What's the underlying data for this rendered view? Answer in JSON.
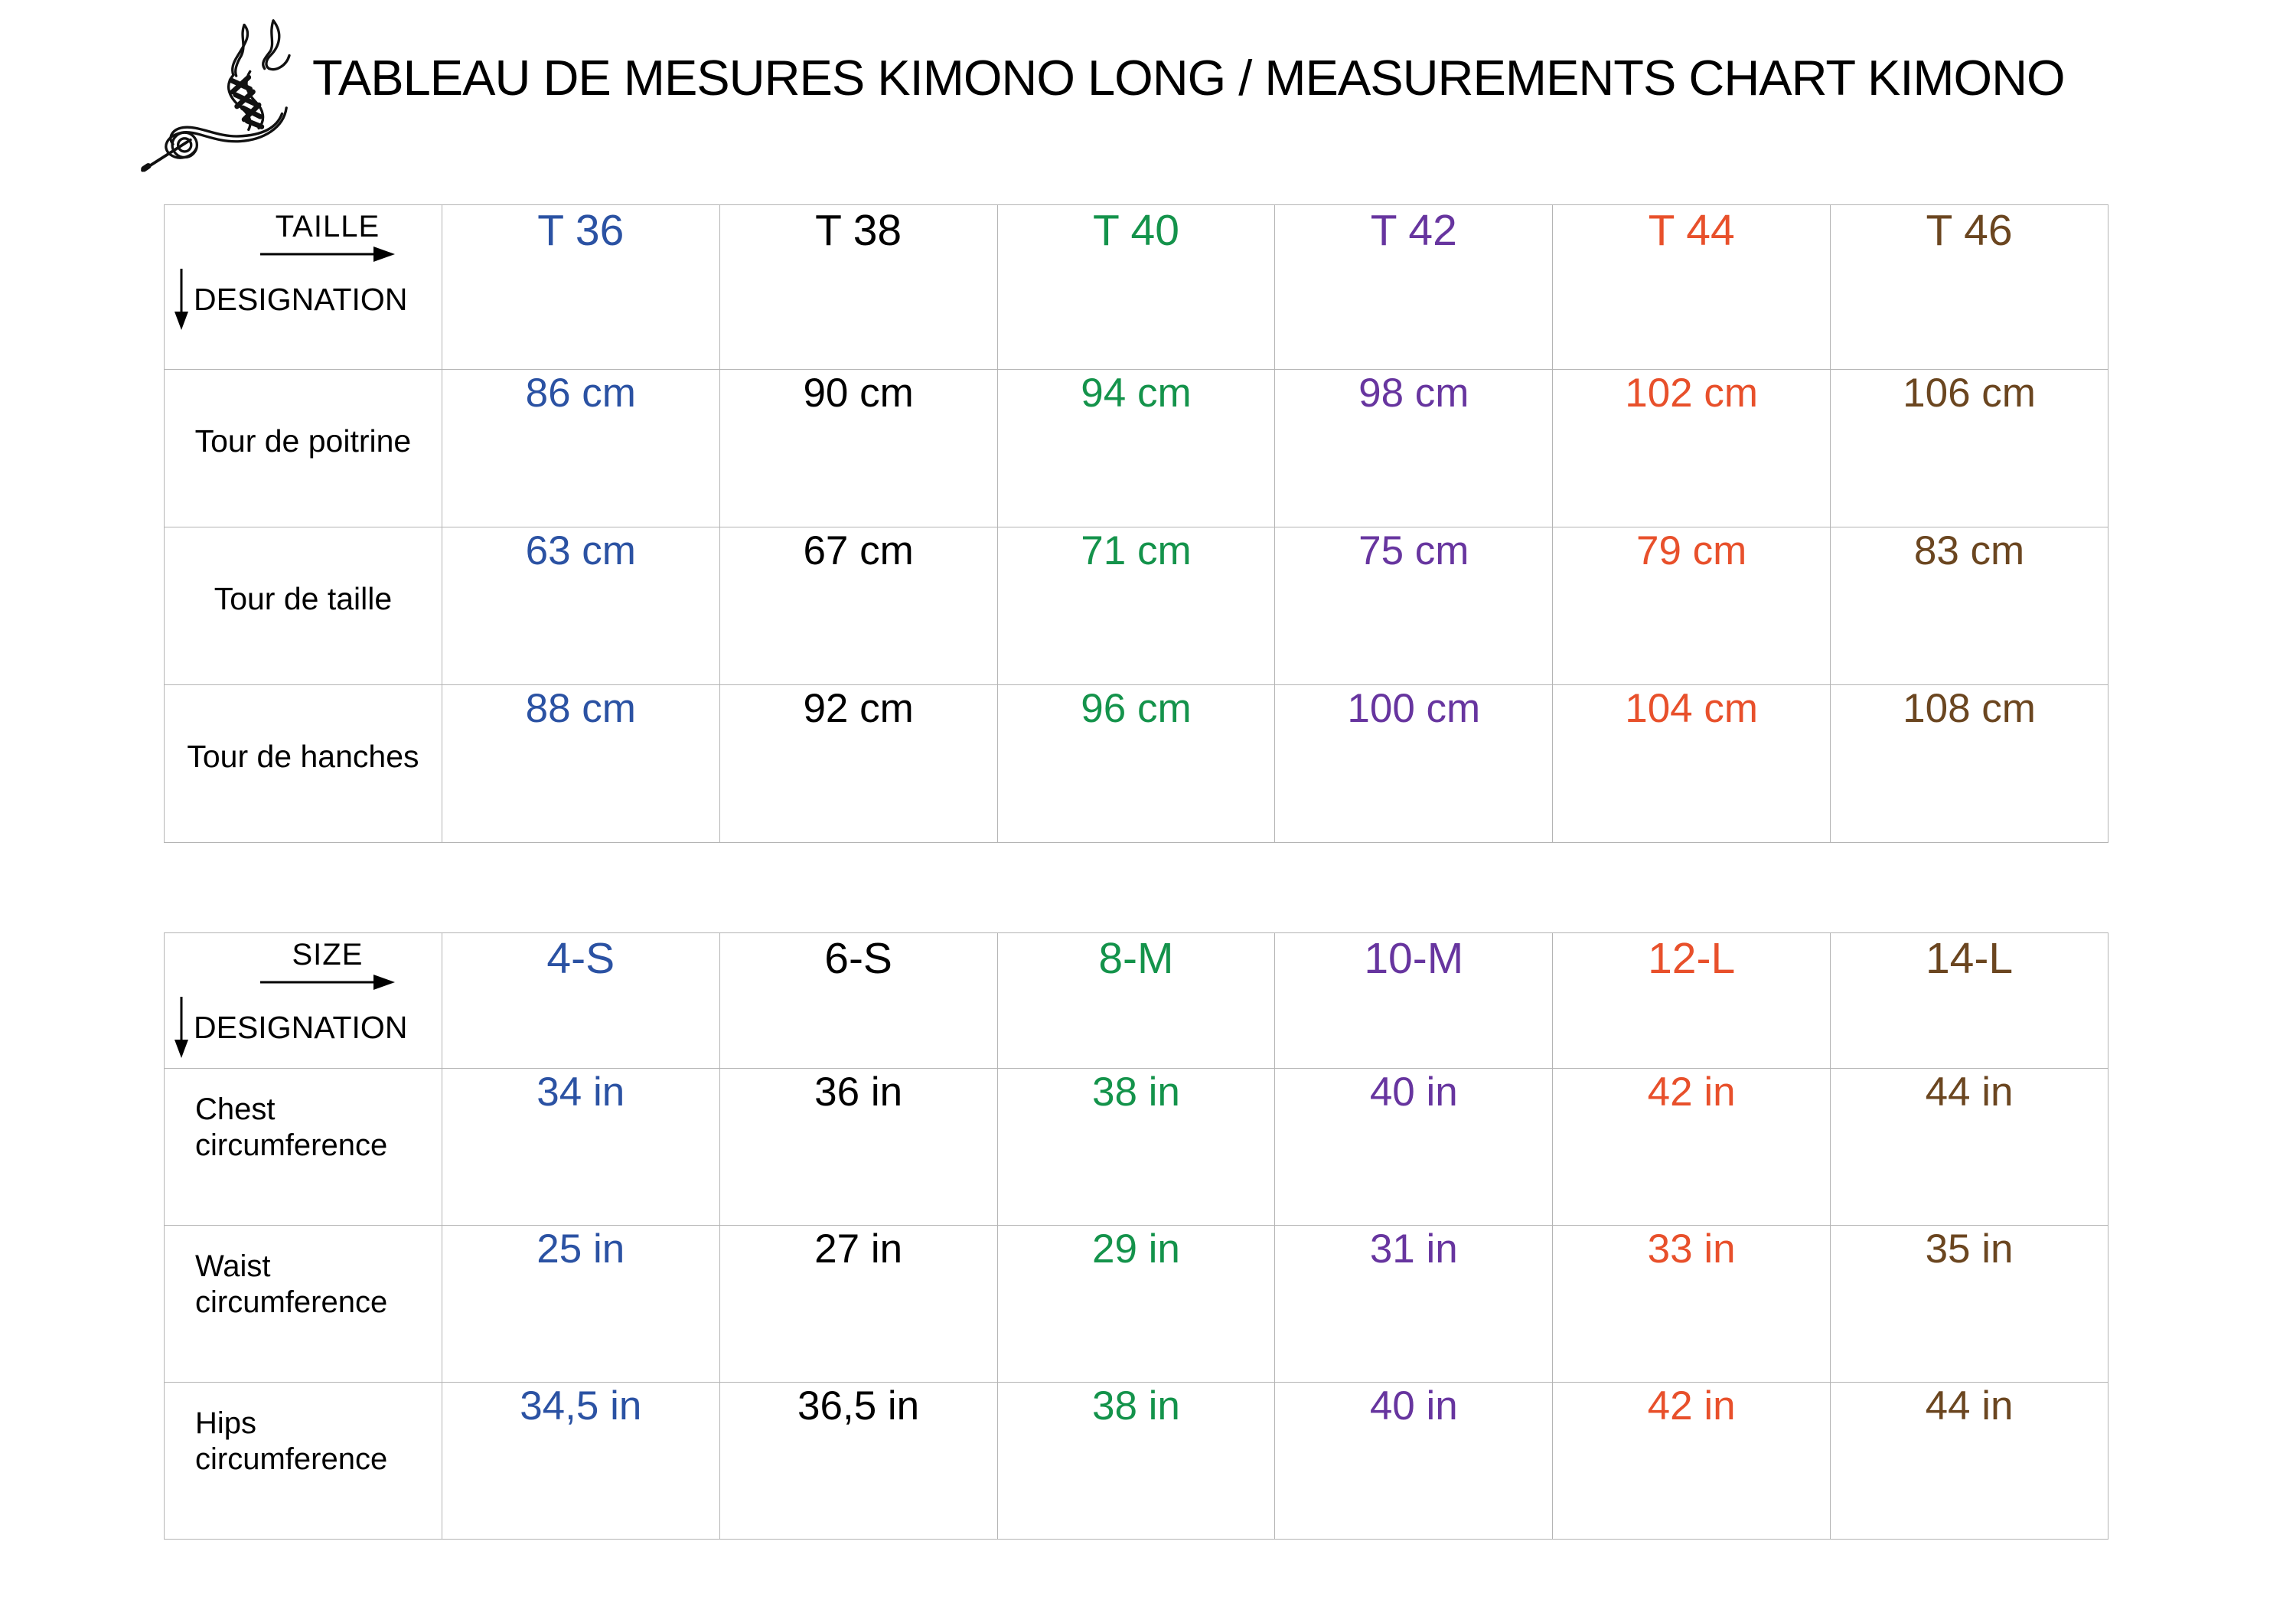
{
  "header": {
    "title": "TABLEAU DE MESURES KIMONO LONG / MEASUREMENTS CHART KIMONO",
    "logo": "needle-and-thread-flourish"
  },
  "palette": {
    "blue": "#2B52A3",
    "black": "#000000",
    "green": "#14934B",
    "purple": "#67359F",
    "orange": "#E8502B",
    "brown": "#6B4620",
    "grid": "#B4B4B4"
  },
  "tables": [
    {
      "name": "metric-cm",
      "corner": {
        "column_axis": "TAILLE",
        "row_axis": "DESIGNATION",
        "column_arrow_icon": "right-arrow",
        "row_arrow_icon": "down-arrow"
      },
      "columns": [
        {
          "label": "T 36",
          "color": "#2B52A3"
        },
        {
          "label": "T 38",
          "color": "#000000"
        },
        {
          "label": "T 40",
          "color": "#14934B"
        },
        {
          "label": "T 42",
          "color": "#67359F"
        },
        {
          "label": "T 44",
          "color": "#E8502B"
        },
        {
          "label": "T 46",
          "color": "#6B4620"
        }
      ],
      "rows": [
        {
          "label": "Tour de poitrine",
          "values": [
            "86 cm",
            "90 cm",
            "94 cm",
            "98 cm",
            "102 cm",
            "106 cm"
          ]
        },
        {
          "label": "Tour de taille",
          "values": [
            "63 cm",
            "67 cm",
            "71 cm",
            "75 cm",
            "79 cm",
            "83 cm"
          ]
        },
        {
          "label": "Tour de hanches",
          "values": [
            "88 cm",
            "92 cm",
            "96 cm",
            "100 cm",
            "104 cm",
            "108 cm"
          ]
        }
      ]
    },
    {
      "name": "imperial-in",
      "corner": {
        "column_axis": "SIZE",
        "row_axis": "DESIGNATION",
        "column_arrow_icon": "right-arrow",
        "row_arrow_icon": "down-arrow"
      },
      "columns": [
        {
          "label": "4-S",
          "color": "#2B52A3"
        },
        {
          "label": "6-S",
          "color": "#000000"
        },
        {
          "label": "8-M",
          "color": "#14934B"
        },
        {
          "label": "10-M",
          "color": "#67359F"
        },
        {
          "label": "12-L",
          "color": "#E8502B"
        },
        {
          "label": "14-L",
          "color": "#6B4620"
        }
      ],
      "rows": [
        {
          "label": "Chest circumference",
          "values": [
            "34 in",
            "36 in",
            "38 in",
            "40 in",
            "42 in",
            "44 in"
          ]
        },
        {
          "label": "Waist circumference",
          "values": [
            "25 in",
            "27 in",
            "29 in",
            "31 in",
            "33 in",
            "35 in"
          ]
        },
        {
          "label": "Hips circumference",
          "values": [
            "34,5 in",
            "36,5 in",
            "38 in",
            "40 in",
            "42 in",
            "44 in"
          ]
        }
      ]
    }
  ],
  "chart_data": [
    {
      "type": "table",
      "title": "TABLEAU DE MESURES KIMONO LONG / MEASUREMENTS CHART KIMONO",
      "columns": [
        "TAILLE / DESIGNATION",
        "T 36",
        "T 38",
        "T 40",
        "T 42",
        "T 44",
        "T 46"
      ],
      "rows": [
        [
          "Tour de poitrine",
          "86 cm",
          "90 cm",
          "94 cm",
          "98 cm",
          "102 cm",
          "106 cm"
        ],
        [
          "Tour de taille",
          "63 cm",
          "67 cm",
          "71 cm",
          "75 cm",
          "79 cm",
          "83 cm"
        ],
        [
          "Tour de hanches",
          "88 cm",
          "92 cm",
          "96 cm",
          "100 cm",
          "104 cm",
          "108 cm"
        ]
      ]
    },
    {
      "type": "table",
      "title": "",
      "columns": [
        "SIZE / DESIGNATION",
        "4-S",
        "6-S",
        "8-M",
        "10-M",
        "12-L",
        "14-L"
      ],
      "rows": [
        [
          "Chest circumference",
          "34 in",
          "36 in",
          "38 in",
          "40 in",
          "42 in",
          "44 in"
        ],
        [
          "Waist circumference",
          "25 in",
          "27 in",
          "29 in",
          "31 in",
          "33 in",
          "35 in"
        ],
        [
          "Hips circumference",
          "34,5 in",
          "36,5 in",
          "38 in",
          "40 in",
          "42 in",
          "44 in"
        ]
      ]
    }
  ]
}
